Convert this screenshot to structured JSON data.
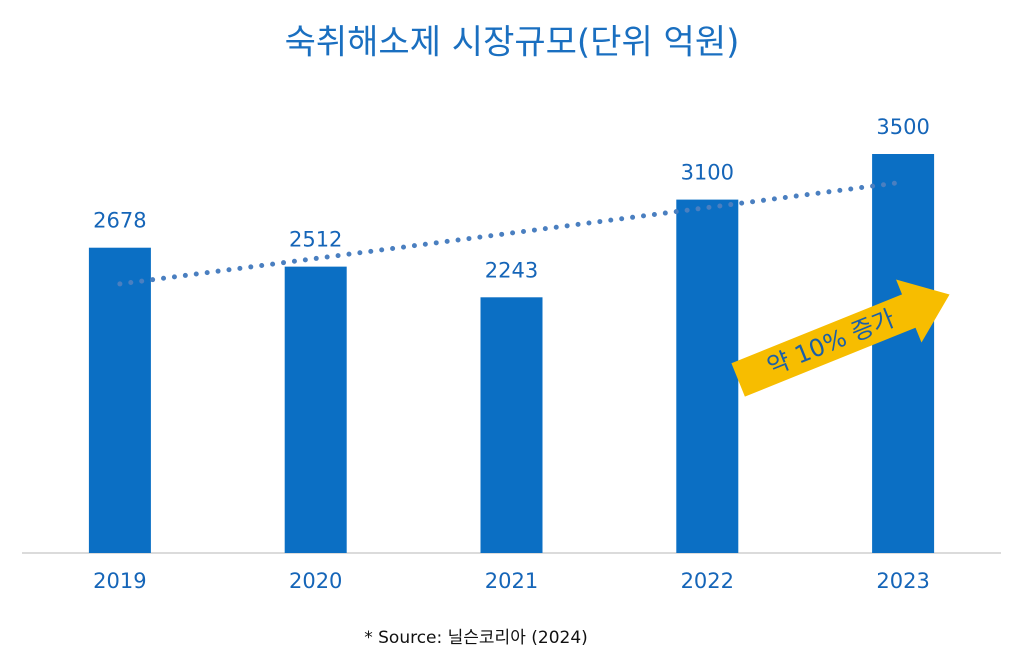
{
  "chart_data": {
    "type": "bar",
    "title": "숙취해소제 시장규모(단위 억원)",
    "categories": [
      "2019",
      "2020",
      "2021",
      "2022",
      "2023"
    ],
    "values": [
      2678,
      2512,
      2243,
      3100,
      3500
    ],
    "color": "#0b6fc4",
    "ylim": [
      0,
      4000
    ],
    "trendline": "linear",
    "trendline_color": "#4a7fc0",
    "annotation": "약 10% 증가",
    "source": "* Source: 닐슨코리아 (2024)"
  }
}
